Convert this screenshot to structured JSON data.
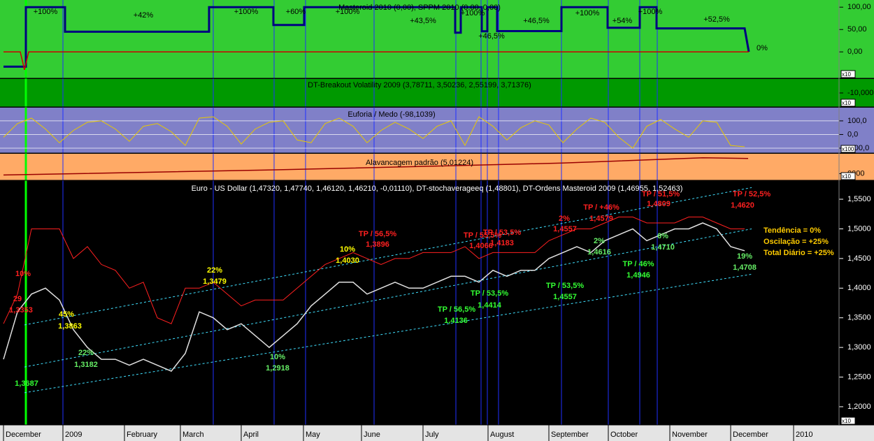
{
  "chart_data": [
    {
      "type": "line",
      "title": "Masteroid 2010 (0,00), SPPM 2010 (0,00, 0,00)",
      "background": "#33cc33",
      "text_color": "#000000",
      "scale_label": "x10",
      "ylim": [
        -59,
        116
      ],
      "yticks": [
        {
          "value": 100,
          "label": "100,00"
        },
        {
          "value": 50,
          "label": "50,00"
        },
        {
          "value": 0,
          "label": "0,00"
        }
      ],
      "series": [
        {
          "color": "#000080",
          "width": 3,
          "x": [
            0,
            1.6,
            1.6,
            4.4,
            4.4,
            14.7,
            14.7,
            19.3,
            19.3,
            21.5,
            21.5,
            32.3,
            32.3,
            32.7,
            32.7,
            34.2,
            34.2,
            34.6,
            34.6,
            35.3,
            35.3,
            39.9,
            39.9,
            43.2,
            43.2,
            45.5,
            45.5,
            46.7,
            46.7,
            53,
            53.3
          ],
          "values": [
            -33,
            -33,
            100,
            100,
            45,
            45,
            100,
            100,
            60,
            60,
            100,
            100,
            43,
            43,
            100,
            100,
            46,
            46,
            100,
            100,
            46.5,
            46.5,
            100,
            100,
            54,
            54,
            100,
            100,
            52.5,
            52.5,
            0
          ]
        },
        {
          "color": "#cc0000",
          "width": 1.5,
          "x": [
            0,
            1.2,
            1.5,
            1.8,
            53.3
          ],
          "values": [
            0,
            0,
            -40,
            0,
            0
          ]
        }
      ],
      "annotations": [
        {
          "text": "+100%",
          "color": "#000000"
        },
        {
          "text": "+42%",
          "color": "#000000"
        },
        {
          "text": "+100%",
          "color": "#000000"
        },
        {
          "text": "+60%",
          "color": "#000000"
        },
        {
          "text": "+100%",
          "color": "#000000"
        },
        {
          "text": "+43,5%",
          "color": "#000000"
        },
        {
          "text": "+100%",
          "color": "#000000"
        },
        {
          "text": "+46,5%",
          "color": "#000000"
        },
        {
          "text": "+46,5%",
          "color": "#000000"
        },
        {
          "text": "+100%",
          "color": "#000000"
        },
        {
          "text": "+54%",
          "color": "#000000"
        },
        {
          "text": "+100%",
          "color": "#000000"
        },
        {
          "text": "+52,5%",
          "color": "#000000"
        },
        {
          "text": "0%",
          "color": "#000000"
        }
      ]
    },
    {
      "type": "line",
      "title": "DT-Breakout Volatility 2009 (3,78711, 3,50236, 2,55199, 3,71376)",
      "background": "#009900",
      "text_color": "#000000",
      "scale_label": "x10",
      "ylim": [
        -20,
        0
      ],
      "yticks": [
        {
          "value": -10,
          "label": "-10,000"
        }
      ],
      "series": [],
      "annotations": []
    },
    {
      "type": "line",
      "title": "Euforia / Medo (-98,1039)",
      "background": "#8080c8",
      "text_color": "#000000",
      "scale_label": "x100",
      "grid": true,
      "ylim": [
        -136,
        197
      ],
      "yticks": [
        {
          "value": 100,
          "label": "100,0"
        },
        {
          "value": 0,
          "label": "0,0"
        },
        {
          "value": -100,
          "label": "-100,0"
        }
      ],
      "series": [
        {
          "color": "#e8c800",
          "width": 1,
          "values": [
            -20,
            80,
            120,
            40,
            -60,
            30,
            90,
            100,
            40,
            -50,
            60,
            80,
            20,
            -80,
            120,
            130,
            60,
            -70,
            40,
            90,
            100,
            -40,
            -60,
            80,
            120,
            60,
            -60,
            30,
            90,
            40,
            -30,
            60,
            100,
            -80,
            130,
            60,
            -40,
            50,
            100,
            70,
            -60,
            40,
            120,
            90,
            -20,
            -100,
            60,
            110,
            40,
            -20,
            100,
            90,
            -80,
            -90
          ]
        }
      ],
      "annotations": []
    },
    {
      "type": "line",
      "title": "Alavancagem padrão (5,01224)",
      "background": "#ffaa66",
      "text_color": "#000000",
      "scale_label": "x10",
      "ylim": [
        -0.5,
        1.5
      ],
      "yticks": [
        {
          "value": 0,
          "label": "0000"
        }
      ],
      "series": [
        {
          "color": "#990000",
          "width": 1.5,
          "x": [
            0,
            20,
            40,
            50,
            53.25
          ],
          "values": [
            -0.1,
            0.3,
            0.8,
            1.2,
            1.15
          ]
        }
      ],
      "annotations": []
    },
    {
      "type": "line",
      "title": "Euro - US Dollar (1,47320, 1,47740, 1,46120, 1,46210, -0,01110), DT-stochaverageeq (1,48801), DT-Ordens Masteroid 2009 (1,46955, 1,52463)",
      "background": "#000000",
      "text_color": "#ffffff",
      "scale_label": "x10",
      "xlim": [
        -0.25,
        59.75
      ],
      "xticks": [
        {
          "value": 0,
          "label": "December"
        },
        {
          "value": 4.25,
          "label": "2009"
        },
        {
          "value": 8.65,
          "label": "February"
        },
        {
          "value": 12.65,
          "label": "March"
        },
        {
          "value": 17,
          "label": "April"
        },
        {
          "value": 21.45,
          "label": "May"
        },
        {
          "value": 25.6,
          "label": "June"
        },
        {
          "value": 30,
          "label": "July"
        },
        {
          "value": 34.65,
          "label": "August"
        },
        {
          "value": 39,
          "label": "September"
        },
        {
          "value": 43.25,
          "label": "October"
        },
        {
          "value": 47.65,
          "label": "November"
        },
        {
          "value": 52,
          "label": "December"
        },
        {
          "value": 56.5,
          "label": "2010"
        }
      ],
      "ylim": [
        1.1693,
        1.5807
      ],
      "yticks": [
        {
          "value": 1.55,
          "label": "1,5500"
        },
        {
          "value": 1.5,
          "label": "1,5000"
        },
        {
          "value": 1.45,
          "label": "1,4500"
        },
        {
          "value": 1.4,
          "label": "1,4000"
        },
        {
          "value": 1.35,
          "label": "1,3500"
        },
        {
          "value": 1.3,
          "label": "1,3000"
        },
        {
          "value": 1.25,
          "label": "1,2500"
        },
        {
          "value": 1.2,
          "label": "1,2000"
        }
      ],
      "signals": [
        4.25,
        15,
        19.35,
        21.6,
        26.5,
        32.35,
        34.15,
        34.6,
        35.4,
        39.9,
        43.25,
        45.5,
        46.75
      ],
      "signal_color": "#2030ff",
      "entry_signal": 1.6,
      "entry_color": "#00ff00",
      "series": [
        {
          "color": "#40e0ff",
          "width": 1,
          "dashed": true,
          "x": [
            1.5,
            53.5
          ],
          "values": [
            1.338,
            1.5696
          ]
        },
        {
          "color": "#40e0ff",
          "width": 1,
          "dashed": true,
          "x": [
            1.5,
            53.5
          ],
          "values": [
            1.267,
            1.5
          ]
        },
        {
          "color": "#40e0ff",
          "width": 1,
          "dashed": true,
          "x": [
            1.5,
            53.5
          ],
          "values": [
            1.2236,
            1.4234
          ]
        },
        {
          "color": "#ff2020",
          "width": 1,
          "values": [
            1.34,
            1.39,
            1.5,
            1.5,
            1.5,
            1.45,
            1.47,
            1.44,
            1.43,
            1.4,
            1.41,
            1.35,
            1.34,
            1.4,
            1.4,
            1.41,
            1.39,
            1.37,
            1.38,
            1.38,
            1.38,
            1.4,
            1.42,
            1.44,
            1.45,
            1.46,
            1.45,
            1.44,
            1.45,
            1.45,
            1.46,
            1.46,
            1.46,
            1.47,
            1.45,
            1.46,
            1.46,
            1.46,
            1.46,
            1.48,
            1.49,
            1.5,
            1.5,
            1.51,
            1.52,
            1.52,
            1.51,
            1.51,
            1.51,
            1.52,
            1.52,
            1.51,
            1.5,
            1.5
          ]
        },
        {
          "color": "#e0e0e0",
          "width": 1.5,
          "values": [
            1.28,
            1.36,
            1.39,
            1.4,
            1.38,
            1.33,
            1.3,
            1.28,
            1.28,
            1.27,
            1.28,
            1.27,
            1.26,
            1.29,
            1.36,
            1.35,
            1.33,
            1.34,
            1.32,
            1.3,
            1.32,
            1.34,
            1.37,
            1.39,
            1.41,
            1.41,
            1.39,
            1.4,
            1.41,
            1.4,
            1.4,
            1.41,
            1.42,
            1.42,
            1.41,
            1.43,
            1.42,
            1.43,
            1.43,
            1.45,
            1.46,
            1.47,
            1.46,
            1.48,
            1.49,
            1.5,
            1.48,
            1.49,
            1.5,
            1.5,
            1.51,
            1.5,
            1.47,
            1.463
          ]
        }
      ],
      "annotations": [
        {
          "text": "TP / 56,5%",
          "color": "#ff2020"
        },
        {
          "text": "1,3896",
          "color": "#ff2020"
        },
        {
          "text": "TP / 55,5%",
          "color": "#ff2020"
        },
        {
          "text": "1,4066",
          "color": "#ff2020"
        },
        {
          "text": "TP / 53,5%",
          "color": "#ff2020"
        },
        {
          "text": "1,4183",
          "color": "#ff2020"
        },
        {
          "text": "2%",
          "color": "#ff2020"
        },
        {
          "text": "1,4557",
          "color": "#ff2020"
        },
        {
          "text": "TP / +46%",
          "color": "#ff2020"
        },
        {
          "text": "1,4579",
          "color": "#ff2020"
        },
        {
          "text": "TP / 51,5%",
          "color": "#ff2020"
        },
        {
          "text": "1,4809",
          "color": "#ff2020"
        },
        {
          "text": "TP / 52,5%",
          "color": "#ff2020"
        },
        {
          "text": "1,4620",
          "color": "#ff2020"
        },
        {
          "text": "10%",
          "color": "#ff2020"
        },
        {
          "text": "29",
          "color": "#ff2020"
        },
        {
          "text": "1,3353",
          "color": "#ff2020"
        },
        {
          "text": "10%",
          "color": "#ffff00"
        },
        {
          "text": "1,4030",
          "color": "#ffff00"
        },
        {
          "text": "22%",
          "color": "#ffff00"
        },
        {
          "text": "1,3479",
          "color": "#ffff00"
        },
        {
          "text": "45%",
          "color": "#ffff00"
        },
        {
          "text": "1,3863",
          "color": "#ffff00"
        },
        {
          "text": "Tendência = 0%",
          "color": "#ffcc00"
        },
        {
          "text": "Oscilação = +25%",
          "color": "#ffcc00"
        },
        {
          "text": "Total Diário = +25%",
          "color": "#ffcc00"
        },
        {
          "text": "TP / 56,5%",
          "color": "#33ff33"
        },
        {
          "text": "1,4136",
          "color": "#33ff33"
        },
        {
          "text": "TP / 53,5%",
          "color": "#33ff33"
        },
        {
          "text": "1,4414",
          "color": "#33ff33"
        },
        {
          "text": "TP / 53,5%",
          "color": "#33ff33"
        },
        {
          "text": "1,4557",
          "color": "#33ff33"
        },
        {
          "text": "TP / 46%",
          "color": "#33ff33"
        },
        {
          "text": "1,4946",
          "color": "#33ff33"
        },
        {
          "text": "1,3687",
          "color": "#33ff33"
        },
        {
          "text": "22%",
          "color": "#66ee66"
        },
        {
          "text": "1,3182",
          "color": "#66ee66"
        },
        {
          "text": "10%",
          "color": "#66ee66"
        },
        {
          "text": "1,2918",
          "color": "#66ee66"
        },
        {
          "text": "2%",
          "color": "#66ee66"
        },
        {
          "text": "1,4616",
          "color": "#66ee66"
        },
        {
          "text": "6%",
          "color": "#66ee66"
        },
        {
          "text": "1,4710",
          "color": "#66ee66"
        },
        {
          "text": "19%",
          "color": "#66ee66"
        },
        {
          "text": "1,4708",
          "color": "#66ee66"
        }
      ]
    }
  ]
}
